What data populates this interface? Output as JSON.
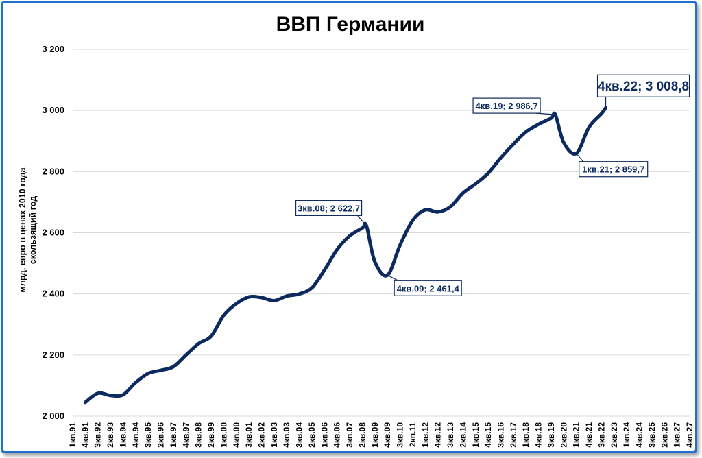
{
  "chart_data": {
    "type": "line",
    "title": "ВВП Германии",
    "ylabel": "млрд. евро в ценах 2010 года|скользящий год",
    "xlabel": "",
    "ylim": [
      2000,
      3200
    ],
    "yticks": [
      2000,
      2200,
      2400,
      2600,
      2800,
      3000,
      3200
    ],
    "ytick_labels": [
      "2 000",
      "2 200",
      "2 400",
      "2 600",
      "2 800",
      "3 000",
      "3 200"
    ],
    "grid": true,
    "legend": "none",
    "color": "#0d2a5e",
    "x_tick_labels": [
      "1кв.91",
      "4кв.91",
      "3кв.92",
      "2кв.93",
      "1кв.94",
      "4кв.94",
      "3кв.95",
      "2кв.96",
      "1кв.97",
      "4кв.97",
      "3кв.98",
      "2кв.99",
      "1кв.00",
      "4кв.00",
      "3кв.01",
      "2кв.02",
      "1кв.03",
      "4кв.03",
      "3кв.04",
      "2кв.05",
      "1кв.06",
      "4кв.06",
      "3кв.07",
      "2кв.08",
      "1кв.09",
      "4кв.09",
      "3кв.10",
      "2кв.11",
      "1кв.12",
      "4кв.12",
      "3кв.13",
      "2кв.14",
      "1кв.15",
      "4кв.15",
      "3кв.16",
      "2кв.17",
      "1кв.18",
      "4кв.18",
      "3кв.19",
      "2кв.20",
      "1кв.21",
      "4кв.21",
      "3кв.22",
      "2кв.23",
      "1кв.24",
      "4кв.24",
      "3кв.25",
      "2кв.26",
      "1кв.27",
      "4кв.27"
    ],
    "series": [
      {
        "x": [
          "4кв.91",
          "3кв.92",
          "2кв.93",
          "1кв.94",
          "4кв.94",
          "3кв.95",
          "2кв.96",
          "1кв.97",
          "4кв.97",
          "3кв.98",
          "2кв.99",
          "1кв.00",
          "4кв.00",
          "3кв.01",
          "2кв.02",
          "1кв.03",
          "4кв.03",
          "3кв.04",
          "2кв.05",
          "1кв.06",
          "4кв.06",
          "3кв.07",
          "2кв.08",
          "3кв.08",
          "1кв.09",
          "4кв.09",
          "3кв.10",
          "2кв.11",
          "1кв.12",
          "4кв.12",
          "3кв.13",
          "2кв.14",
          "1кв.15",
          "4кв.15",
          "3кв.16",
          "2кв.17",
          "1кв.18",
          "4кв.18",
          "3кв.19",
          "4кв.19",
          "2кв.20",
          "1кв.21",
          "4кв.21",
          "3кв.22",
          "4кв.22"
        ],
        "values": [
          2045,
          2075,
          2068,
          2070,
          2110,
          2140,
          2150,
          2162,
          2200,
          2237,
          2262,
          2330,
          2368,
          2390,
          2388,
          2378,
          2393,
          2400,
          2420,
          2478,
          2545,
          2590,
          2615,
          2622.7,
          2505,
          2461.4,
          2560,
          2640,
          2675,
          2668,
          2685,
          2730,
          2760,
          2795,
          2845,
          2890,
          2930,
          2955,
          2975,
          2986.7,
          2895,
          2859.7,
          2945,
          2990,
          3008.8
        ]
      }
    ],
    "annotations": [
      {
        "label": "3кв.08; 2 622,7",
        "x": "3кв.08",
        "y": 2622.7
      },
      {
        "label": "4кв.09; 2 461,4",
        "x": "4кв.09",
        "y": 2461.4
      },
      {
        "label": "4кв.19; 2 986,7",
        "x": "4кв.19",
        "y": 2986.7
      },
      {
        "label": "1кв.21; 2 859,7",
        "x": "1кв.21",
        "y": 2859.7
      },
      {
        "label": "4кв.22; 3 008,8",
        "x": "4кв.22",
        "y": 3008.8
      }
    ]
  }
}
